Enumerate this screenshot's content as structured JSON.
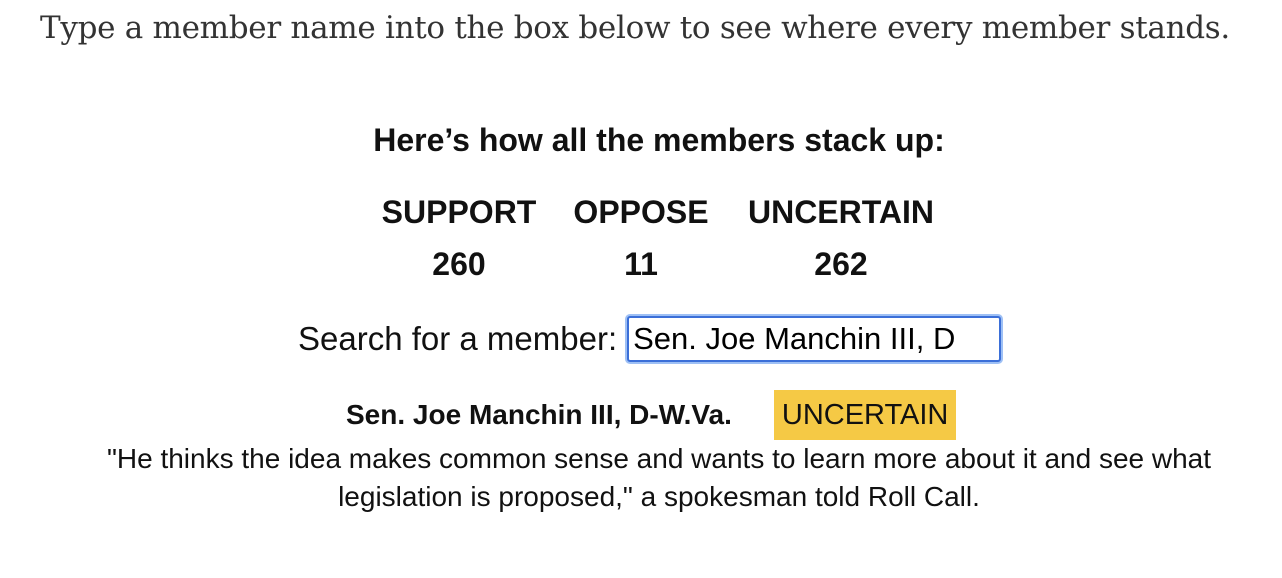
{
  "intro": {
    "text": "Type a member name into the box below to see where every member stands."
  },
  "stack": {
    "heading": "Here’s how all the members stack up:",
    "tallies": [
      {
        "label": "SUPPORT",
        "count": "260"
      },
      {
        "label": "OPPOSE",
        "count": "11"
      },
      {
        "label": "UNCERTAIN",
        "count": "262"
      }
    ]
  },
  "search": {
    "label": "Search for a member:",
    "value": "Sen. Joe Manchin III, D"
  },
  "result": {
    "member_name": "Sen. Joe Manchin III, D-W.Va.",
    "status": "UNCERTAIN",
    "status_color": "#f5c945",
    "quote": "\"He thinks the idea makes common sense and wants to learn more about it and see what legislation is proposed,\" a spokesman told Roll Call."
  },
  "colors": {
    "focus_ring": "#3b6fd8",
    "text": "#111111",
    "intro_text": "#333333"
  }
}
